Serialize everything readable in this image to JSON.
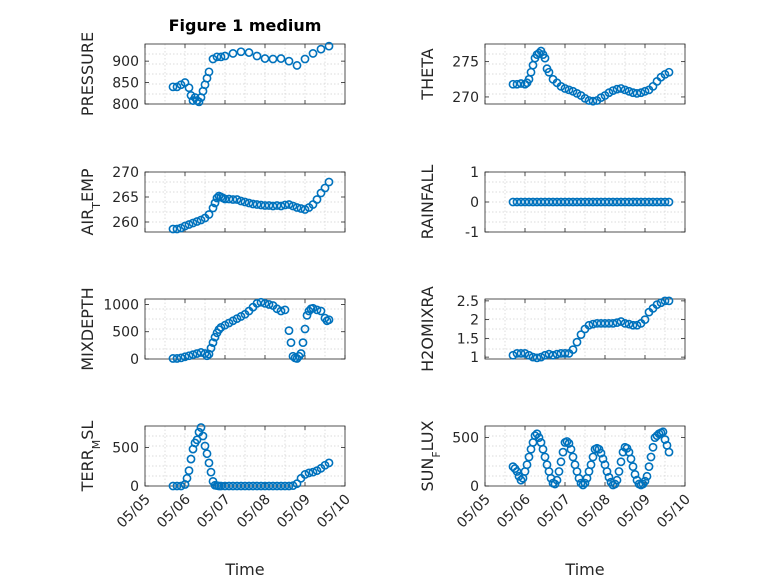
{
  "chart_data": [
    {
      "type": "scatter",
      "title": "Figure 1 medium",
      "ylabel": "PRESSURE",
      "xlabel": "",
      "xlim": [
        0,
        5
      ],
      "ylim": [
        800,
        940
      ],
      "yticks": [
        800,
        850,
        900
      ],
      "yticklabels": [
        "800",
        "850",
        "900"
      ],
      "x": [
        0.7,
        0.8,
        0.9,
        1.0,
        1.1,
        1.15,
        1.2,
        1.25,
        1.3,
        1.35,
        1.4,
        1.45,
        1.5,
        1.55,
        1.6,
        1.7,
        1.8,
        1.9,
        2.0,
        2.2,
        2.4,
        2.6,
        2.8,
        3.0,
        3.2,
        3.4,
        3.6,
        3.8,
        4.0,
        4.2,
        4.4,
        4.6
      ],
      "y": [
        840,
        840,
        845,
        850,
        838,
        820,
        808,
        815,
        808,
        805,
        815,
        830,
        845,
        860,
        875,
        905,
        910,
        910,
        912,
        918,
        922,
        920,
        912,
        906,
        905,
        906,
        900,
        890,
        905,
        918,
        928,
        935
      ]
    },
    {
      "type": "scatter",
      "title": "",
      "ylabel": "THETA",
      "xlabel": "",
      "xlim": [
        0,
        5
      ],
      "ylim": [
        269,
        277.5
      ],
      "yticks": [
        270,
        275
      ],
      "yticklabels": [
        "270",
        "275"
      ],
      "x": [
        0.7,
        0.8,
        0.9,
        1.0,
        1.05,
        1.1,
        1.15,
        1.2,
        1.25,
        1.3,
        1.35,
        1.4,
        1.45,
        1.5,
        1.55,
        1.6,
        1.7,
        1.8,
        1.9,
        2.0,
        2.1,
        2.2,
        2.3,
        2.4,
        2.5,
        2.6,
        2.7,
        2.8,
        2.9,
        3.0,
        3.1,
        3.2,
        3.3,
        3.4,
        3.5,
        3.6,
        3.7,
        3.8,
        3.9,
        4.0,
        4.1,
        4.2,
        4.3,
        4.4,
        4.5,
        4.6
      ],
      "y": [
        271.8,
        271.8,
        271.9,
        271.8,
        272.0,
        272.5,
        273.5,
        274.5,
        275.5,
        276.0,
        276.2,
        276.5,
        276.0,
        275.5,
        274.0,
        273.5,
        272.5,
        272.0,
        271.5,
        271.2,
        271.0,
        270.8,
        270.5,
        270.2,
        269.8,
        269.5,
        269.4,
        269.5,
        269.9,
        270.2,
        270.6,
        270.9,
        271.1,
        271.2,
        271.0,
        270.8,
        270.6,
        270.5,
        270.6,
        270.8,
        271.0,
        271.5,
        272.2,
        272.8,
        273.2,
        273.5
      ]
    },
    {
      "type": "scatter",
      "title": "",
      "ylabel": "AIR_TEMP",
      "xlabel": "",
      "xlim": [
        0,
        5
      ],
      "ylim": [
        258,
        270
      ],
      "yticks": [
        260,
        265,
        270
      ],
      "yticklabels": [
        "260",
        "265",
        "270"
      ],
      "x": [
        0.7,
        0.8,
        0.9,
        1.0,
        1.1,
        1.2,
        1.3,
        1.4,
        1.5,
        1.6,
        1.7,
        1.75,
        1.8,
        1.85,
        1.9,
        1.95,
        2.0,
        2.1,
        2.2,
        2.3,
        2.4,
        2.5,
        2.6,
        2.7,
        2.8,
        2.9,
        3.0,
        3.1,
        3.2,
        3.3,
        3.4,
        3.5,
        3.6,
        3.7,
        3.8,
        3.9,
        4.0,
        4.1,
        4.2,
        4.3,
        4.4,
        4.5,
        4.6
      ],
      "y": [
        258.6,
        258.6,
        258.8,
        259.2,
        259.5,
        259.8,
        260.1,
        260.4,
        260.8,
        261.5,
        262.8,
        263.8,
        264.8,
        265.2,
        265.0,
        264.8,
        264.6,
        264.6,
        264.5,
        264.5,
        264.2,
        264.0,
        263.8,
        263.6,
        263.5,
        263.4,
        263.3,
        263.3,
        263.2,
        263.3,
        263.2,
        263.4,
        263.5,
        263.2,
        262.9,
        262.7,
        262.5,
        262.9,
        263.5,
        264.5,
        265.8,
        266.8,
        268.0
      ]
    },
    {
      "type": "scatter",
      "title": "",
      "ylabel": "RAINFALL",
      "xlabel": "",
      "xlim": [
        0,
        5
      ],
      "ylim": [
        -1,
        1
      ],
      "yticks": [
        -1,
        0,
        1
      ],
      "yticklabels": [
        "-1",
        "0",
        "1"
      ],
      "x": [
        0.7,
        0.8,
        0.9,
        1.0,
        1.1,
        1.2,
        1.3,
        1.4,
        1.5,
        1.6,
        1.7,
        1.8,
        1.9,
        2.0,
        2.1,
        2.2,
        2.3,
        2.4,
        2.5,
        2.6,
        2.7,
        2.8,
        2.9,
        3.0,
        3.1,
        3.2,
        3.3,
        3.4,
        3.5,
        3.6,
        3.7,
        3.8,
        3.9,
        4.0,
        4.1,
        4.2,
        4.3,
        4.4,
        4.5,
        4.6
      ],
      "y": [
        0,
        0,
        0,
        0,
        0,
        0,
        0,
        0,
        0,
        0,
        0,
        0,
        0,
        0,
        0,
        0,
        0,
        0,
        0,
        0,
        0,
        0,
        0,
        0,
        0,
        0,
        0,
        0,
        0,
        0,
        0,
        0,
        0,
        0,
        0,
        0,
        0,
        0,
        0,
        0
      ]
    },
    {
      "type": "scatter",
      "title": "",
      "ylabel": "MIXDEPTH",
      "xlabel": "",
      "xlim": [
        0,
        5
      ],
      "ylim": [
        0,
        1100
      ],
      "yticks": [
        0,
        500,
        1000
      ],
      "yticklabels": [
        "0",
        "500",
        "1000"
      ],
      "x": [
        0.7,
        0.8,
        0.9,
        1.0,
        1.1,
        1.2,
        1.3,
        1.4,
        1.5,
        1.55,
        1.6,
        1.65,
        1.7,
        1.75,
        1.8,
        1.85,
        1.9,
        2.0,
        2.1,
        2.2,
        2.3,
        2.4,
        2.5,
        2.6,
        2.7,
        2.8,
        2.9,
        3.0,
        3.1,
        3.2,
        3.3,
        3.4,
        3.5,
        3.6,
        3.65,
        3.7,
        3.75,
        3.8,
        3.85,
        3.9,
        3.95,
        4.0,
        4.05,
        4.1,
        4.15,
        4.2,
        4.3,
        4.4,
        4.5,
        4.55,
        4.6
      ],
      "y": [
        10,
        10,
        20,
        40,
        60,
        80,
        100,
        120,
        100,
        60,
        90,
        200,
        300,
        400,
        480,
        540,
        580,
        620,
        660,
        700,
        740,
        780,
        820,
        880,
        950,
        1020,
        1040,
        1020,
        1000,
        980,
        920,
        880,
        900,
        520,
        300,
        50,
        20,
        10,
        50,
        100,
        300,
        550,
        800,
        880,
        920,
        930,
        900,
        880,
        750,
        700,
        720
      ]
    },
    {
      "type": "scatter",
      "title": "",
      "ylabel": "H2OMIXRA",
      "xlabel": "",
      "xlim": [
        0,
        5
      ],
      "ylim": [
        0.95,
        2.55
      ],
      "yticks": [
        1,
        1.5,
        2,
        2.5
      ],
      "yticklabels": [
        "1",
        "1.5",
        "2",
        "2.5"
      ],
      "x": [
        0.7,
        0.8,
        0.9,
        1.0,
        1.1,
        1.2,
        1.3,
        1.4,
        1.5,
        1.6,
        1.7,
        1.8,
        1.9,
        2.0,
        2.1,
        2.2,
        2.3,
        2.4,
        2.5,
        2.6,
        2.7,
        2.8,
        2.9,
        3.0,
        3.1,
        3.2,
        3.3,
        3.4,
        3.5,
        3.6,
        3.7,
        3.8,
        3.9,
        4.0,
        4.1,
        4.2,
        4.3,
        4.4,
        4.5,
        4.6
      ],
      "y": [
        1.05,
        1.1,
        1.1,
        1.1,
        1.05,
        1.0,
        0.98,
        1.0,
        1.05,
        1.08,
        1.05,
        1.08,
        1.1,
        1.1,
        1.1,
        1.2,
        1.4,
        1.6,
        1.75,
        1.85,
        1.88,
        1.9,
        1.9,
        1.9,
        1.9,
        1.9,
        1.92,
        1.95,
        1.9,
        1.88,
        1.85,
        1.85,
        1.9,
        2.0,
        2.2,
        2.3,
        2.4,
        2.45,
        2.5,
        2.5
      ]
    },
    {
      "type": "scatter",
      "title": "",
      "ylabel": "TERR_MSL",
      "xlabel": "Time",
      "xlim": [
        0,
        5
      ],
      "ylim": [
        0,
        780
      ],
      "yticks": [
        0,
        500
      ],
      "yticklabels": [
        "0",
        "500"
      ],
      "xticks": [
        0,
        1,
        2,
        3,
        4,
        5
      ],
      "xticklabels": [
        "05/05",
        "05/06",
        "05/07",
        "05/08",
        "05/09",
        "05/10"
      ],
      "x": [
        0.7,
        0.8,
        0.9,
        1.0,
        1.05,
        1.1,
        1.15,
        1.2,
        1.25,
        1.3,
        1.35,
        1.4,
        1.45,
        1.5,
        1.55,
        1.6,
        1.65,
        1.7,
        1.75,
        1.8,
        1.85,
        1.9,
        2.0,
        2.1,
        2.2,
        2.3,
        2.4,
        2.5,
        2.6,
        2.7,
        2.8,
        2.9,
        3.0,
        3.1,
        3.2,
        3.3,
        3.4,
        3.5,
        3.6,
        3.7,
        3.8,
        3.9,
        4.0,
        4.1,
        4.2,
        4.3,
        4.4,
        4.5,
        4.6
      ],
      "y": [
        0,
        0,
        0,
        20,
        100,
        200,
        350,
        480,
        560,
        600,
        700,
        760,
        650,
        520,
        420,
        300,
        180,
        60,
        10,
        5,
        0,
        0,
        0,
        0,
        0,
        0,
        0,
        0,
        0,
        0,
        0,
        0,
        0,
        0,
        0,
        0,
        0,
        0,
        0,
        5,
        30,
        100,
        150,
        170,
        180,
        200,
        230,
        270,
        300
      ]
    },
    {
      "type": "scatter",
      "title": "",
      "ylabel": "SUN_FLUX",
      "xlabel": "Time",
      "xlim": [
        0,
        5
      ],
      "ylim": [
        0,
        620
      ],
      "yticks": [
        0,
        500
      ],
      "yticklabels": [
        "0",
        "500"
      ],
      "xticks": [
        0,
        1,
        2,
        3,
        4,
        5
      ],
      "xticklabels": [
        "05/05",
        "05/06",
        "05/07",
        "05/08",
        "05/09",
        "05/10"
      ],
      "x": [
        0.7,
        0.75,
        0.8,
        0.85,
        0.9,
        0.95,
        1.0,
        1.05,
        1.1,
        1.15,
        1.2,
        1.25,
        1.3,
        1.35,
        1.4,
        1.45,
        1.5,
        1.55,
        1.6,
        1.65,
        1.7,
        1.75,
        1.8,
        1.85,
        1.9,
        1.95,
        2.0,
        2.05,
        2.1,
        2.15,
        2.2,
        2.25,
        2.3,
        2.35,
        2.4,
        2.45,
        2.5,
        2.55,
        2.6,
        2.65,
        2.7,
        2.75,
        2.8,
        2.85,
        2.9,
        2.95,
        3.0,
        3.05,
        3.1,
        3.15,
        3.2,
        3.25,
        3.3,
        3.35,
        3.4,
        3.45,
        3.5,
        3.55,
        3.6,
        3.65,
        3.7,
        3.75,
        3.8,
        3.85,
        3.9,
        3.95,
        4.0,
        4.05,
        4.1,
        4.15,
        4.2,
        4.25,
        4.3,
        4.35,
        4.4,
        4.45,
        4.5,
        4.55,
        4.6
      ],
      "y": [
        200,
        180,
        150,
        100,
        60,
        80,
        150,
        220,
        300,
        380,
        450,
        520,
        540,
        500,
        450,
        380,
        300,
        220,
        150,
        80,
        30,
        20,
        60,
        150,
        250,
        350,
        450,
        460,
        440,
        380,
        300,
        220,
        150,
        80,
        30,
        10,
        30,
        80,
        150,
        220,
        300,
        380,
        390,
        380,
        340,
        280,
        220,
        150,
        90,
        40,
        10,
        20,
        60,
        150,
        250,
        350,
        400,
        390,
        350,
        280,
        200,
        120,
        60,
        20,
        10,
        20,
        50,
        100,
        200,
        300,
        400,
        500,
        520,
        540,
        550,
        560,
        480,
        420,
        350
      ]
    }
  ]
}
